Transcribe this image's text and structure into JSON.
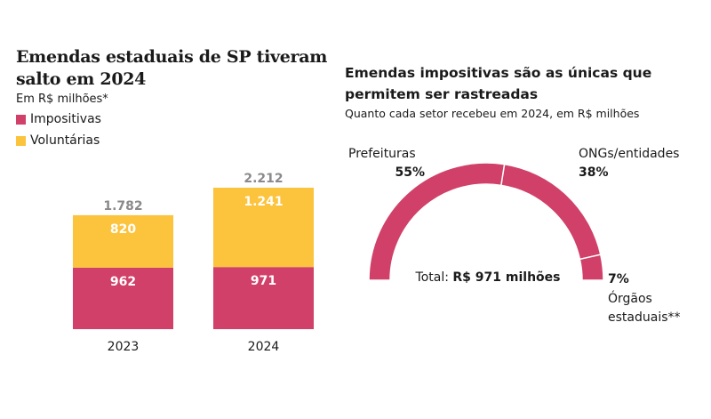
{
  "colors": {
    "impositivas": "#d04068",
    "voluntarias": "#fcc33d",
    "total_label": "#8a8a8a",
    "text": "#1a1a1a"
  },
  "left": {
    "title": "Emendas estaduais de SP tiveram salto em 2024",
    "subtitle": "Em R$ milhões*",
    "legend": [
      {
        "label": "Impositivas",
        "color": "#d04068"
      },
      {
        "label": "Voluntárias",
        "color": "#fcc33d"
      }
    ]
  },
  "right": {
    "title": "Emendas impositivas são as únicas que permitem ser rastreadas",
    "subtitle": "Quanto cada setor recebeu em 2024, em R$ milhões",
    "total_prefix": "Total:",
    "total_value": "R$ 971 milhões"
  },
  "chart_data": [
    {
      "type": "bar",
      "stacked": true,
      "title": "Emendas estaduais de SP tiveram salto em 2024",
      "ylabel": "Em R$ milhões*",
      "categories": [
        "2023",
        "2024"
      ],
      "series": [
        {
          "name": "Impositivas",
          "values": [
            962,
            971
          ],
          "labels": [
            "962",
            "971"
          ],
          "color": "#d04068"
        },
        {
          "name": "Voluntárias",
          "values": [
            820,
            1241
          ],
          "labels": [
            "820",
            "1.241"
          ],
          "color": "#fcc33d"
        }
      ],
      "totals": [
        1782,
        2212
      ],
      "total_labels": [
        "1.782",
        "2.212"
      ],
      "ylim": [
        0,
        2212
      ],
      "legend": "top-left",
      "grid": false
    },
    {
      "type": "pie",
      "variant": "half-donut",
      "title": "Emendas impositivas são as únicas que permitem ser rastreadas",
      "subtitle": "Quanto cada setor recebeu em 2024, em R$ milhões",
      "slices": [
        {
          "label": "Prefeituras",
          "value": 55,
          "value_label": "55%"
        },
        {
          "label": "ONGs/entidades",
          "value": 38,
          "value_label": "38%"
        },
        {
          "label": "Órgãos estaduais**",
          "value": 7,
          "value_label": "7%"
        }
      ],
      "center_label": "Total: R$ 971 milhões",
      "color": "#d04068"
    }
  ]
}
